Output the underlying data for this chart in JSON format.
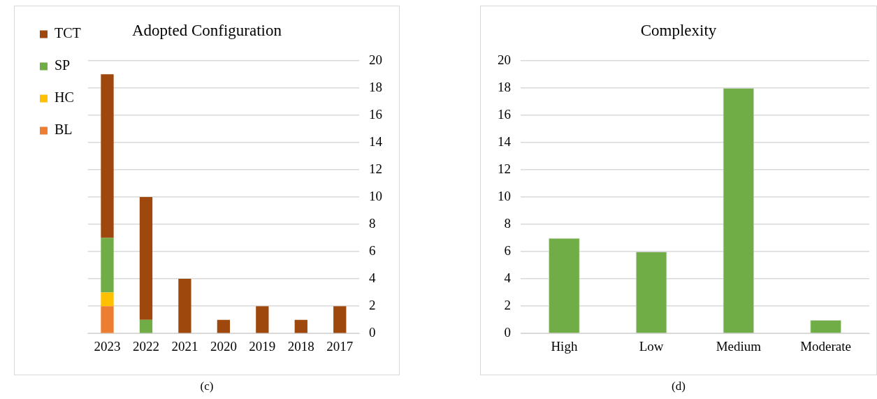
{
  "chart_data": [
    {
      "type": "bar",
      "title": "Adopted Configuration",
      "categories": [
        "2023",
        "2022",
        "2021",
        "2020",
        "2019",
        "2018",
        "2017"
      ],
      "stacked": true,
      "series": [
        {
          "name": "BL",
          "color": "#ed7d31",
          "values": [
            2,
            0,
            0,
            0,
            0,
            0,
            0
          ]
        },
        {
          "name": "HC",
          "color": "#ffc000",
          "values": [
            1,
            0,
            0,
            0,
            0,
            0,
            0
          ]
        },
        {
          "name": "SP",
          "color": "#70ad47",
          "values": [
            4,
            1,
            0,
            0,
            0,
            0,
            0
          ]
        },
        {
          "name": "TCT",
          "color": "#9e480e",
          "values": [
            12,
            9,
            4,
            1,
            2,
            1,
            2
          ]
        }
      ],
      "ylim": [
        0,
        20
      ],
      "yticks": [
        0,
        2,
        4,
        6,
        8,
        10,
        12,
        14,
        16,
        18,
        20
      ],
      "grid": "y",
      "legend": "left",
      "annotations": [
        "(c)"
      ]
    },
    {
      "type": "bar",
      "title": "Complexity",
      "categories": [
        "High",
        "Low",
        "Medium",
        "Moderate"
      ],
      "values": [
        7,
        6,
        18,
        1
      ],
      "color": "#70ad47",
      "ylim": [
        0,
        20
      ],
      "yticks": [
        0,
        2,
        4,
        6,
        8,
        10,
        12,
        14,
        16,
        18,
        20
      ],
      "grid": "y",
      "annotations": [
        "(d)"
      ]
    }
  ]
}
